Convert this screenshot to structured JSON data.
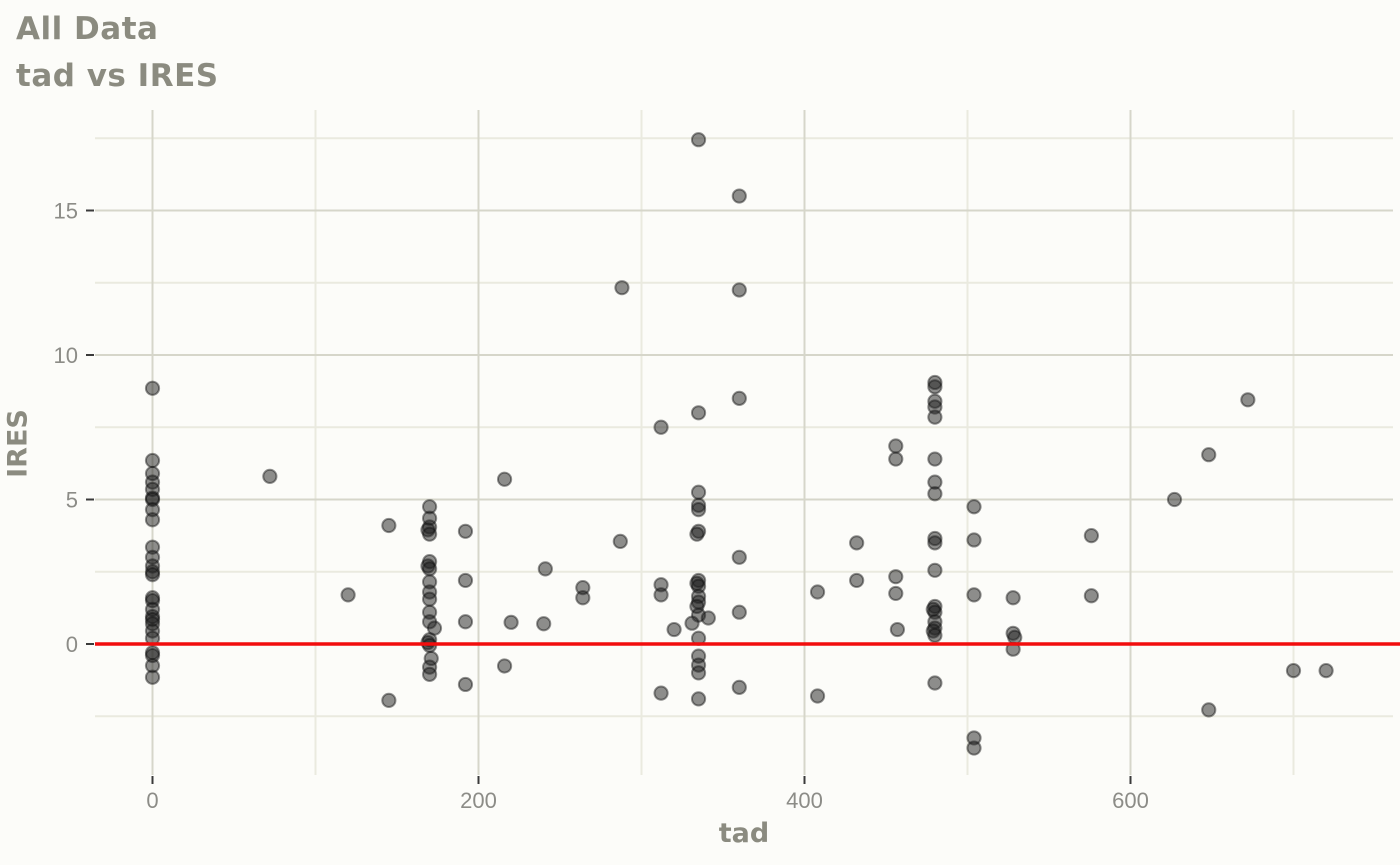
{
  "chart_data": {
    "type": "scatter",
    "title": "All Data",
    "subtitle": "tad vs IRES",
    "xlabel": "tad",
    "ylabel": "IRES",
    "x_ticks": [
      0,
      200,
      400,
      600
    ],
    "y_ticks": [
      0,
      5,
      10,
      15
    ],
    "x_minor": [
      100,
      300,
      500,
      700
    ],
    "y_minor": [
      -2.5,
      2.5,
      7.5,
      12.5,
      17.5
    ],
    "xlim": [
      -35,
      761
    ],
    "ylim": [
      -4.5,
      18.5
    ],
    "grid": true,
    "legend": "none",
    "reference_line": {
      "y": 0
    },
    "points": [
      [
        0,
        8.85
      ],
      [
        0,
        6.35
      ],
      [
        0,
        5.9
      ],
      [
        0,
        5.6
      ],
      [
        0,
        5.35
      ],
      [
        0,
        5.05
      ],
      [
        0,
        5.0
      ],
      [
        0,
        4.65
      ],
      [
        0,
        4.3
      ],
      [
        0,
        3.35
      ],
      [
        0,
        3.0
      ],
      [
        0,
        2.7
      ],
      [
        0,
        2.5
      ],
      [
        0,
        2.4
      ],
      [
        0,
        1.6
      ],
      [
        0,
        1.5
      ],
      [
        0,
        1.2
      ],
      [
        0,
        0.95
      ],
      [
        0,
        0.85
      ],
      [
        0,
        0.7
      ],
      [
        0,
        0.45
      ],
      [
        0,
        0.2
      ],
      [
        0,
        -0.3
      ],
      [
        0,
        -0.4
      ],
      [
        0,
        -0.75
      ],
      [
        0,
        -1.15
      ],
      [
        72,
        5.8
      ],
      [
        120,
        1.7
      ],
      [
        145,
        4.1
      ],
      [
        145,
        -1.95
      ],
      [
        170,
        4.75
      ],
      [
        170,
        4.35
      ],
      [
        170,
        4.05
      ],
      [
        169,
        3.95
      ],
      [
        170,
        3.8
      ],
      [
        170,
        2.85
      ],
      [
        169,
        2.7
      ],
      [
        170,
        2.6
      ],
      [
        170,
        2.15
      ],
      [
        170,
        1.8
      ],
      [
        170,
        1.55
      ],
      [
        170,
        1.1
      ],
      [
        170,
        0.77
      ],
      [
        173,
        0.55
      ],
      [
        170,
        0.15
      ],
      [
        169,
        0.05
      ],
      [
        170,
        -0.05
      ],
      [
        171,
        -0.5
      ],
      [
        170,
        -0.8
      ],
      [
        170,
        -1.05
      ],
      [
        192,
        3.9
      ],
      [
        192,
        2.2
      ],
      [
        192,
        0.77
      ],
      [
        192,
        -1.4
      ],
      [
        216,
        5.7
      ],
      [
        216,
        -0.76
      ],
      [
        220,
        0.75
      ],
      [
        241,
        2.6
      ],
      [
        240,
        0.7
      ],
      [
        264,
        1.95
      ],
      [
        264,
        1.6
      ],
      [
        288,
        12.33
      ],
      [
        287,
        3.55
      ],
      [
        312,
        7.5
      ],
      [
        312,
        2.05
      ],
      [
        312,
        1.7
      ],
      [
        320,
        0.5
      ],
      [
        312,
        -1.7
      ],
      [
        335,
        17.45
      ],
      [
        335,
        8.0
      ],
      [
        335,
        5.25
      ],
      [
        335,
        4.8
      ],
      [
        335,
        4.65
      ],
      [
        335,
        3.9
      ],
      [
        334,
        3.8
      ],
      [
        335,
        2.2
      ],
      [
        334,
        2.1
      ],
      [
        335,
        2.0
      ],
      [
        335,
        1.65
      ],
      [
        335,
        1.45
      ],
      [
        334,
        1.3
      ],
      [
        335,
        1.0
      ],
      [
        341,
        0.9
      ],
      [
        331,
        0.72
      ],
      [
        335,
        0.2
      ],
      [
        335,
        -0.42
      ],
      [
        335,
        -0.73
      ],
      [
        335,
        -1.0
      ],
      [
        335,
        -1.9
      ],
      [
        360,
        15.5
      ],
      [
        360,
        12.25
      ],
      [
        360,
        8.5
      ],
      [
        360,
        3.0
      ],
      [
        360,
        1.1
      ],
      [
        360,
        -1.5
      ],
      [
        408,
        1.8
      ],
      [
        408,
        -1.8
      ],
      [
        432,
        3.5
      ],
      [
        432,
        2.2
      ],
      [
        456,
        6.85
      ],
      [
        456,
        6.4
      ],
      [
        456,
        2.33
      ],
      [
        456,
        1.75
      ],
      [
        457,
        0.5
      ],
      [
        480,
        9.05
      ],
      [
        480,
        8.9
      ],
      [
        480,
        8.4
      ],
      [
        480,
        8.2
      ],
      [
        480,
        7.85
      ],
      [
        480,
        6.4
      ],
      [
        480,
        5.6
      ],
      [
        480,
        5.2
      ],
      [
        480,
        3.65
      ],
      [
        480,
        3.5
      ],
      [
        480,
        2.55
      ],
      [
        480,
        1.3
      ],
      [
        479,
        1.2
      ],
      [
        480,
        1.1
      ],
      [
        480,
        0.77
      ],
      [
        480,
        0.55
      ],
      [
        479,
        0.45
      ],
      [
        480,
        0.3
      ],
      [
        480,
        -1.35
      ],
      [
        504,
        4.75
      ],
      [
        504,
        3.6
      ],
      [
        504,
        1.7
      ],
      [
        504,
        -3.25
      ],
      [
        504,
        -3.6
      ],
      [
        528,
        1.6
      ],
      [
        528,
        0.37
      ],
      [
        529,
        0.23
      ],
      [
        528,
        -0.18
      ],
      [
        576,
        3.75
      ],
      [
        576,
        1.67
      ],
      [
        627,
        5.0
      ],
      [
        648,
        6.55
      ],
      [
        648,
        -2.28
      ],
      [
        672,
        8.45
      ],
      [
        700,
        -0.92
      ],
      [
        720,
        -0.92
      ]
    ]
  },
  "colors": {
    "background": "#fcfcf9",
    "grid_major": "#d6d6ca",
    "grid_minor": "#eaeadf",
    "tick_mark": "#3a3a3a",
    "tick_label": "#8c8c87",
    "title_text": "#8b8b80",
    "reference_line": "#f20d0d",
    "point_fill": "rgba(30,30,30,0.50)",
    "point_stroke": "rgba(15,15,15,0.45)"
  }
}
